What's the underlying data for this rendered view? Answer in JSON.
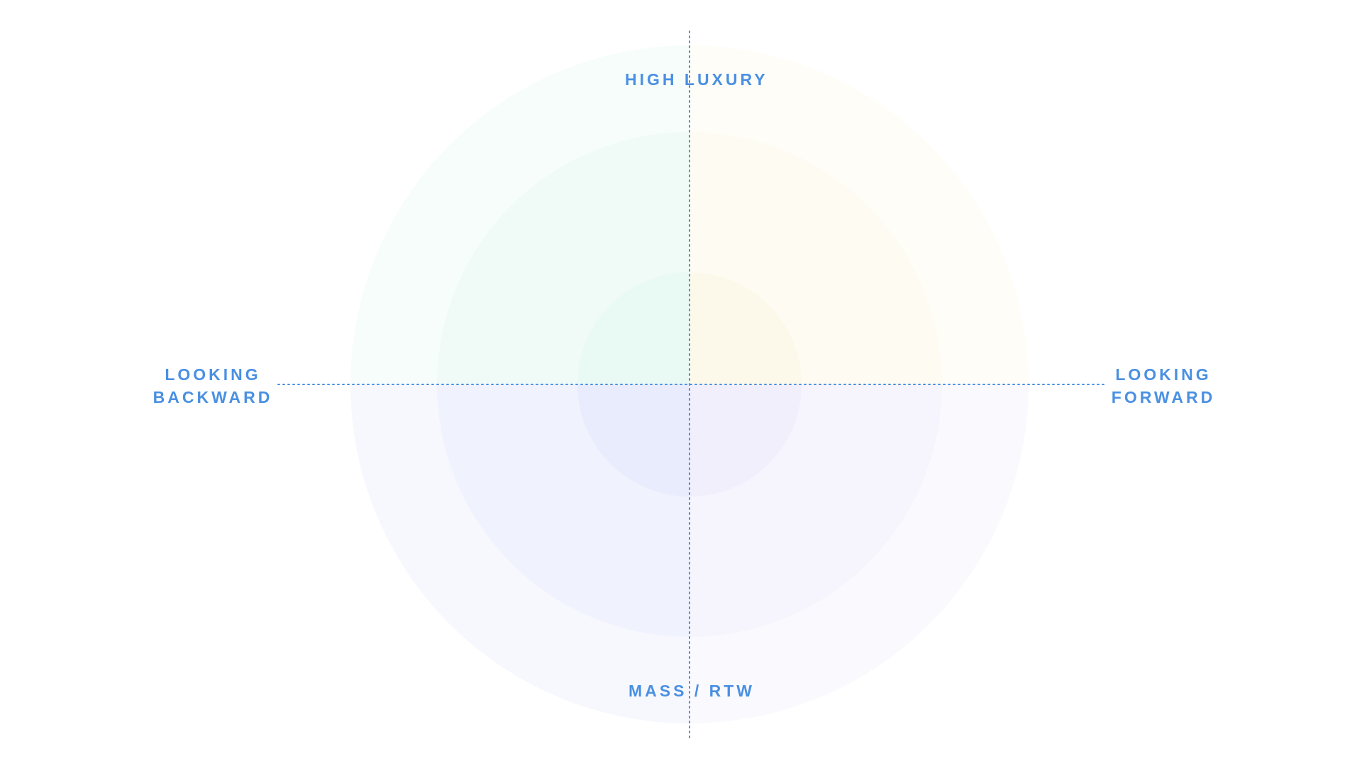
{
  "diagram": {
    "labels": {
      "top": "HIGH LUXURY",
      "bottom": "MASS / RTW",
      "left_line1": "LOOKING",
      "left_line2": "BACKWARD",
      "right_line1": "LOOKING",
      "right_line2": "FORWARD"
    },
    "colors": {
      "label": "#4a90e2",
      "axis": "#4a90e2",
      "top_left": "#2ecc9a",
      "top_right": "#f0c24a",
      "bottom_left": "#8a9af0",
      "bottom_right": "#b8a8f0"
    }
  }
}
